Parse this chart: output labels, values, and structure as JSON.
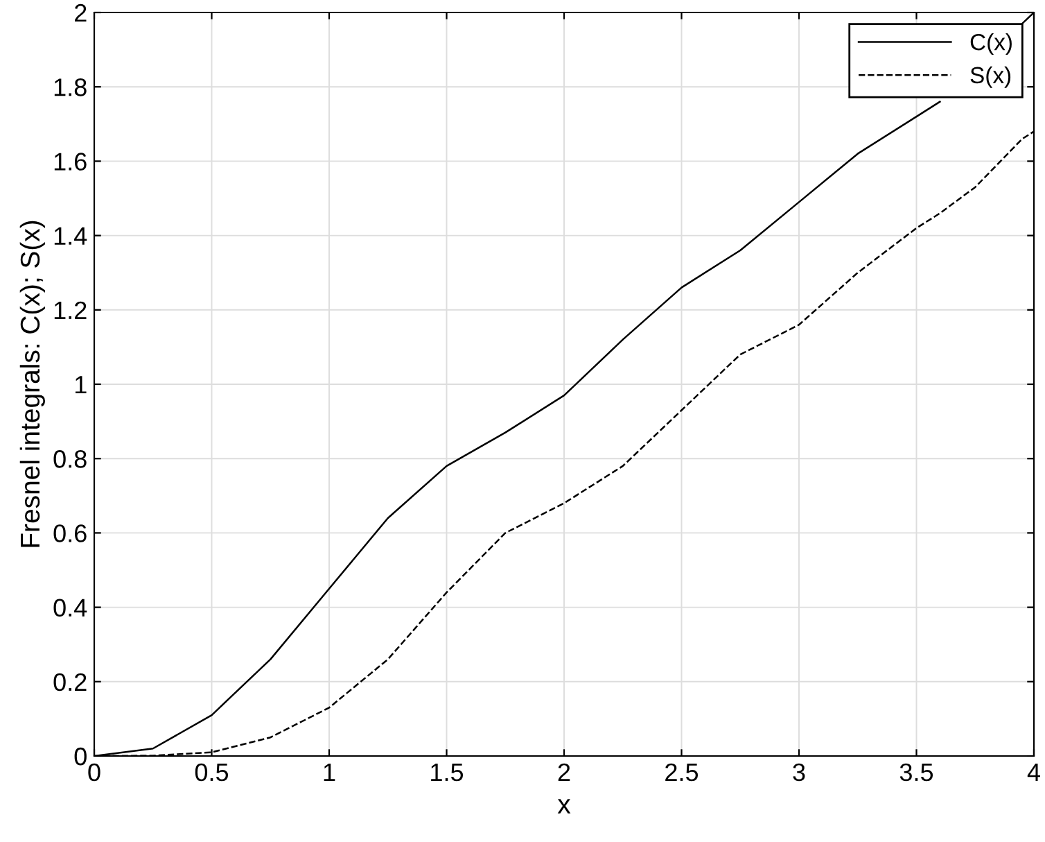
{
  "chart_data": {
    "type": "line",
    "xlabel": "x",
    "ylabel": "Fresnel integrals: C(x); S(x)",
    "x": [
      0,
      0.25,
      0.5,
      0.75,
      1,
      1.25,
      1.5,
      1.75,
      2,
      2.25,
      2.5,
      2.75,
      3,
      3.25,
      3.5,
      3.6,
      3.75,
      3.95,
      4
    ],
    "series": [
      {
        "name": "C(x)",
        "color": "#000000",
        "line_style": "solid",
        "values": [
          0,
          0.02,
          0.11,
          0.26,
          0.45,
          0.64,
          0.78,
          0.87,
          0.97,
          1.12,
          1.26,
          1.36,
          1.49,
          1.62,
          1.72,
          1.76,
          null,
          1.97,
          2.0
        ]
      },
      {
        "name": "S(x)",
        "color": "#000000",
        "line_style": "dashed",
        "values": [
          0,
          0.001,
          0.01,
          0.05,
          0.13,
          0.26,
          0.44,
          0.6,
          0.68,
          0.78,
          0.93,
          1.08,
          1.16,
          1.3,
          1.42,
          1.46,
          1.53,
          1.66,
          1.68
        ]
      }
    ],
    "xlim": [
      0,
      4
    ],
    "ylim": [
      0,
      2
    ],
    "xticks": [
      0,
      0.5,
      1,
      1.5,
      2,
      2.5,
      3,
      3.5,
      4
    ],
    "yticks": [
      0,
      0.2,
      0.4,
      0.6,
      0.8,
      1,
      1.2,
      1.4,
      1.6,
      1.8,
      2
    ],
    "grid": true,
    "legend": "top right",
    "marker": "none"
  }
}
